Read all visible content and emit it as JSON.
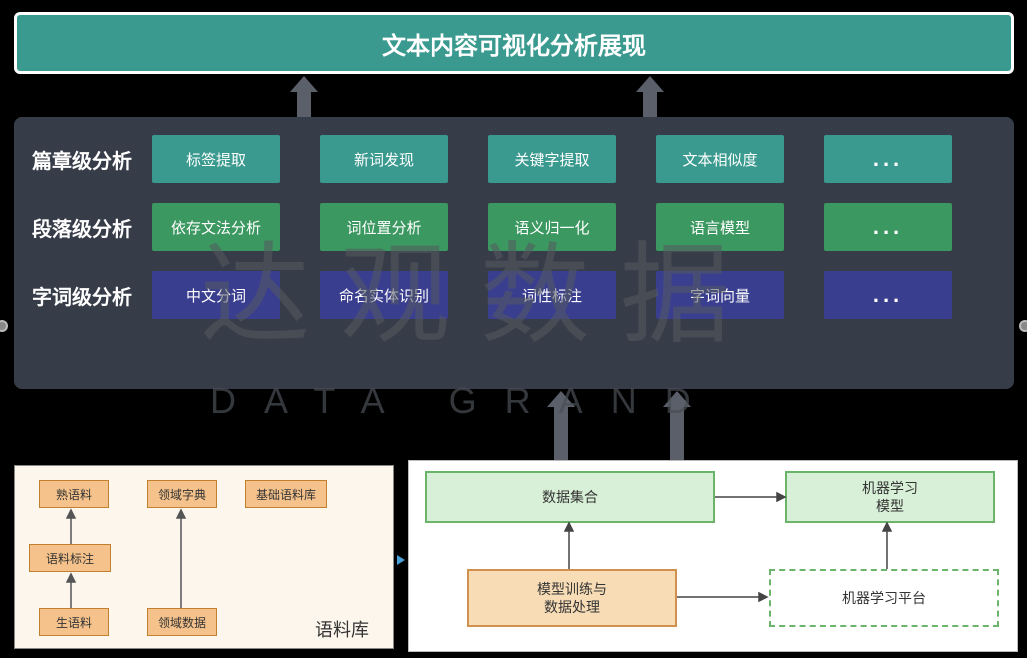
{
  "colors": {
    "page_bg": "#000000",
    "header_bg": "#3a9a8f",
    "panel_bg": "#373c49",
    "row1_cell": "#3a9a8f",
    "row2_cell": "#3b9860",
    "row3_cell": "#3a3e8f",
    "watermark": "#555a60",
    "bl_bg": "#fdf6ed",
    "bl_box": "#f5c28b",
    "br_green_fill": "#d8f0d8",
    "br_green_border": "#6ab56a",
    "br_orange_fill": "#f7dcb5",
    "br_orange_border": "#d09050",
    "br_dashed_border": "#6ab56a"
  },
  "header": {
    "title": "文本内容可视化分析展现"
  },
  "rows": [
    {
      "label": "篇章级分析",
      "cells": [
        "标签提取",
        "新词发现",
        "关键字提取",
        "文本相似度",
        "..."
      ]
    },
    {
      "label": "段落级分析",
      "cells": [
        "依存文法分析",
        "词位置分析",
        "语义归一化",
        "语言模型",
        "..."
      ]
    },
    {
      "label": "字词级分析",
      "cells": [
        "中文分词",
        "命名实体识别",
        "词性标注",
        "字词向量",
        "..."
      ]
    }
  ],
  "watermark": {
    "cn": "达观数据",
    "en": "DATA GRAND"
  },
  "bottom_left": {
    "label": "语料库",
    "boxes": {
      "shu": "熟语料",
      "lingyuzd": "领域字典",
      "jichu": "基础语料库",
      "biaozhu": "语料标注",
      "sheng": "生语料",
      "lingyusj": "领域数据"
    }
  },
  "bottom_right": {
    "boxes": {
      "shuju": "数据集合",
      "moxing_ml": "机器学习\n模型",
      "xunlian": "模型训练与\n数据处理",
      "pingtai": "机器学习平台"
    }
  }
}
